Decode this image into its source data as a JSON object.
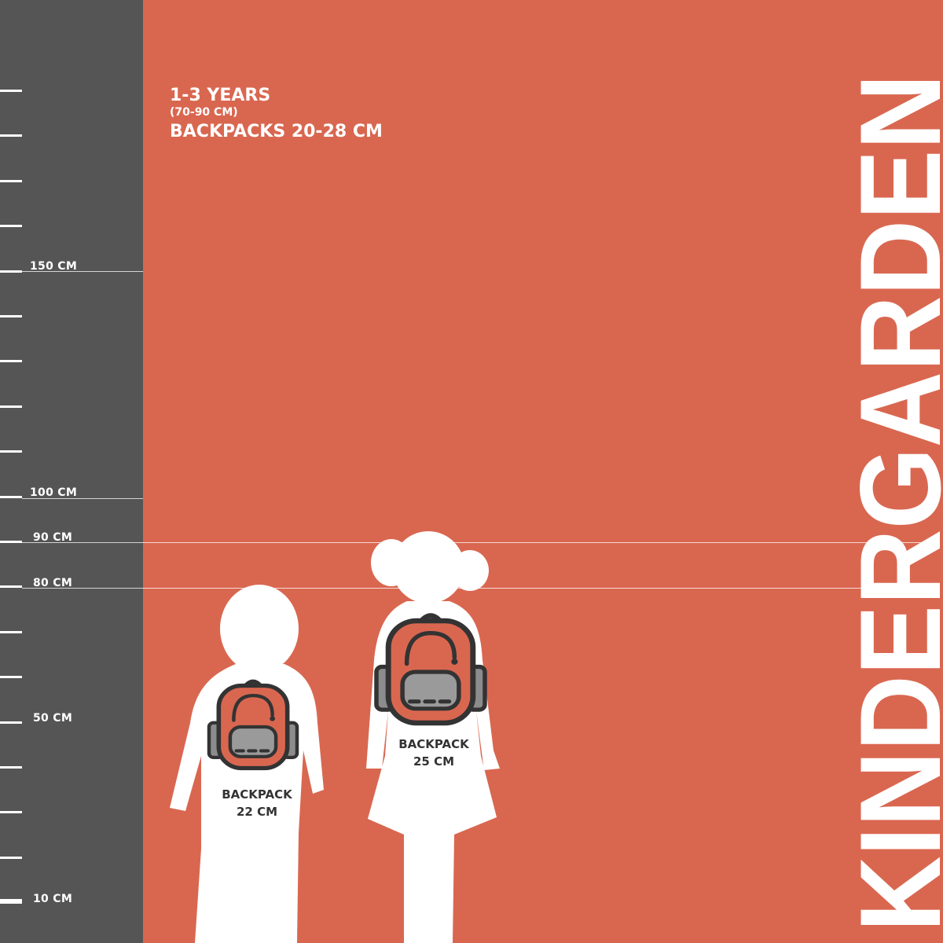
{
  "colors": {
    "background": "#D96750",
    "ruler": "#555555",
    "silhouette": "#FFFFFF",
    "outline": "#333333",
    "pocket": "#9A9A9A"
  },
  "ruler": {
    "labels": [
      {
        "text": "150 CM",
        "value": 150
      },
      {
        "text": "100 CM",
        "value": 100
      },
      {
        "text": "90 CM",
        "value": 90
      },
      {
        "text": "80 CM",
        "value": 80
      },
      {
        "text": "50 CM",
        "value": 50
      },
      {
        "text": "10 CM",
        "value": 10
      }
    ]
  },
  "header": {
    "age": "1-3 YEARS",
    "height_range": "(70-90 CM)",
    "backpack_range": "BACKPACKS 20-28 CM"
  },
  "figures": [
    {
      "type": "boy",
      "label_line1": "BACKPACK",
      "label_line2": "22 CM",
      "backpack_icon": "backpack-icon"
    },
    {
      "type": "girl",
      "label_line1": "BACKPACK",
      "label_line2": "25 CM",
      "backpack_icon": "backpack-icon"
    }
  ],
  "title": "KINDERGARDEN"
}
